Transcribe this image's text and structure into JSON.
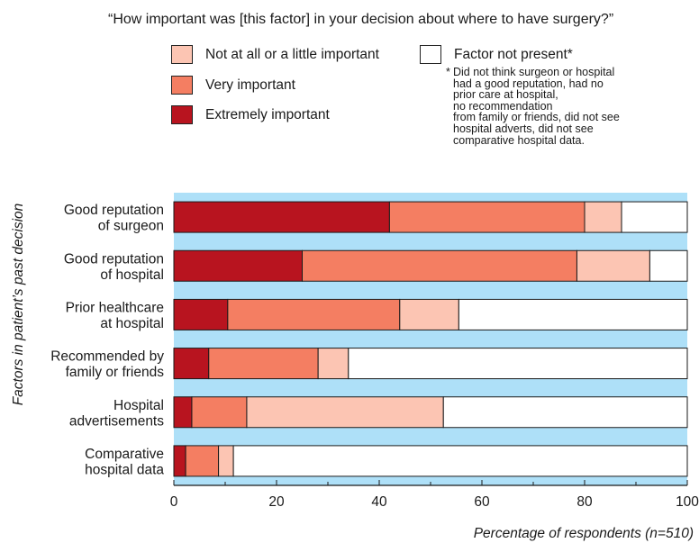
{
  "chart_data": {
    "type": "bar",
    "orientation": "horizontal",
    "stacked": true,
    "title": "“How important was [this factor] in your decision about where to have surgery?”",
    "ylabel": "Factors in patient’s past decision",
    "xlabel": "Percentage of respondents (n=510)",
    "xlim": [
      0,
      100
    ],
    "xticks": [
      "0",
      "20",
      "40",
      "60",
      "80",
      "100"
    ],
    "categories": [
      [
        "Good reputation",
        "of surgeon"
      ],
      [
        "Good reputation",
        "of hospital"
      ],
      [
        "Prior healthcare",
        "at hospital"
      ],
      [
        "Recommended by",
        "family or friends"
      ],
      [
        "Hospital",
        "advertisements"
      ],
      [
        "Comparative",
        "hospital data"
      ]
    ],
    "series": [
      {
        "name": "Extremely important",
        "color": "#b8141f",
        "values": [
          42,
          25,
          10.5,
          6.8,
          3.5,
          2.3
        ]
      },
      {
        "name": "Very important",
        "color": "#f47e62",
        "values": [
          38,
          53.5,
          33.5,
          21.3,
          10.7,
          6.4
        ]
      },
      {
        "name": "Not at all or a little important",
        "color": "#fcc5b3",
        "values": [
          7.2,
          14.2,
          11.5,
          5.9,
          38.3,
          2.9
        ]
      },
      {
        "name": "Factor not present*",
        "color": "#ffffff",
        "values": [
          12.8,
          7.3,
          44.5,
          66,
          47.5,
          88.4
        ]
      }
    ],
    "legend": {
      "placement": "top",
      "items": [
        {
          "label": "Not at all or a little important",
          "color": "#fcc5b3"
        },
        {
          "label": "Very important",
          "color": "#f47e62"
        },
        {
          "label": "Extremely important",
          "color": "#b8141f"
        },
        {
          "label": "Factor not present*",
          "color": "#ffffff"
        }
      ]
    },
    "footnote": {
      "marker": "*",
      "lines": [
        "Did not think surgeon or hospital",
        "had a good reputation, had no",
        "prior care at hospital,",
        "no recommendation",
        "from family or friends, did not see",
        "hospital adverts, did not see",
        "comparative hospital data."
      ]
    },
    "background_color": "#aee0f8",
    "grid": false
  }
}
